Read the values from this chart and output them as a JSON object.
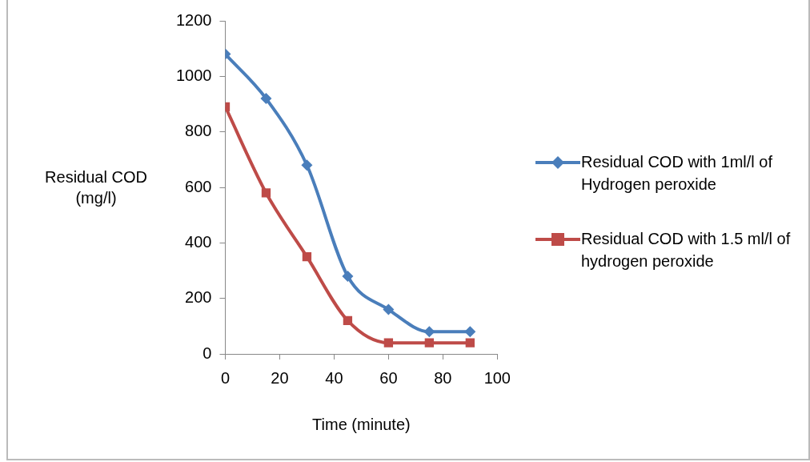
{
  "chart_data": {
    "type": "line",
    "xlabel": "Time (minute)",
    "ylabel": "Residual COD (mg/l)",
    "x": [
      0,
      15,
      30,
      45,
      60,
      75,
      90
    ],
    "series": [
      {
        "name": "Residual COD with 1ml/l of Hydrogen peroxide",
        "color": "#4a7ebb",
        "marker": "diamond",
        "values": [
          1080,
          920,
          680,
          280,
          160,
          80,
          80
        ]
      },
      {
        "name": "Residual COD with 1.5 ml/l of hydrogen peroxide",
        "color": "#be4b48",
        "marker": "square",
        "values": [
          890,
          580,
          350,
          120,
          40,
          40,
          40
        ]
      }
    ],
    "xlim": [
      0,
      100
    ],
    "xticks": [
      0,
      20,
      40,
      60,
      80,
      100
    ],
    "ylim": [
      0,
      1200
    ],
    "yticks": [
      0,
      200,
      400,
      600,
      800,
      1000,
      1200
    ],
    "grid": false,
    "legend": "right",
    "line_style": "solid"
  }
}
